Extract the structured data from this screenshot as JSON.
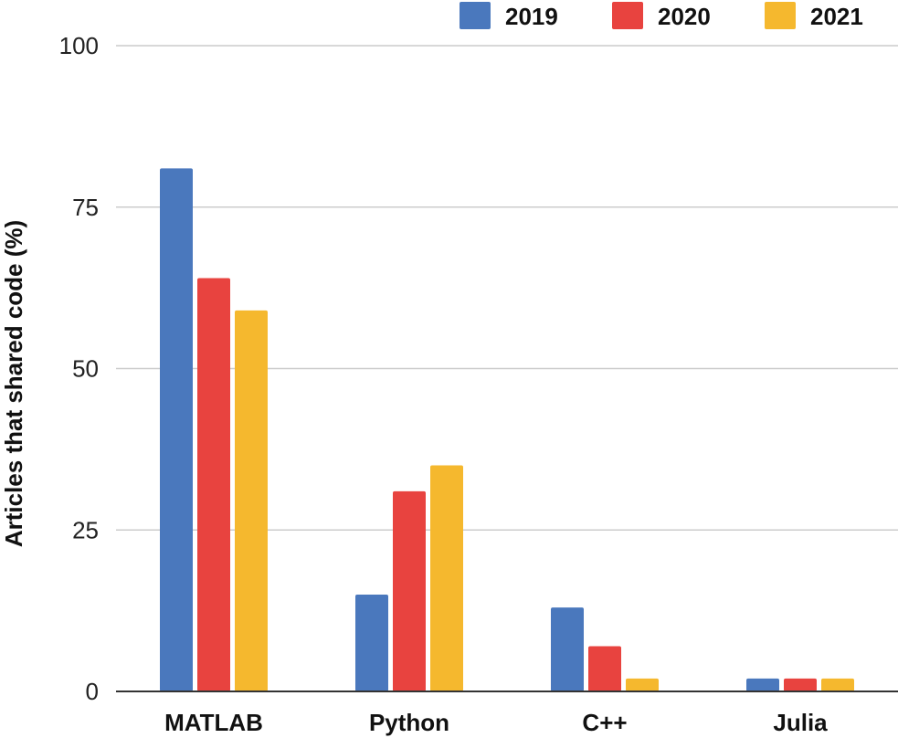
{
  "chart_data": {
    "type": "bar",
    "title": "",
    "xlabel": "",
    "ylabel": "Articles that shared code (%)",
    "categories": [
      "MATLAB",
      "Python",
      "C++",
      "Julia"
    ],
    "series": [
      {
        "name": "2019",
        "color": "#4a78bd",
        "values": [
          81,
          15,
          13,
          2
        ]
      },
      {
        "name": "2020",
        "color": "#e8433f",
        "values": [
          64,
          31,
          7,
          2
        ]
      },
      {
        "name": "2021",
        "color": "#f5b82e",
        "values": [
          59,
          35,
          2,
          2
        ]
      }
    ],
    "ylim": [
      0,
      100
    ],
    "yticks": [
      "0",
      "25",
      "50",
      "75",
      "100"
    ],
    "grid": true,
    "legend_position": "top-right"
  }
}
